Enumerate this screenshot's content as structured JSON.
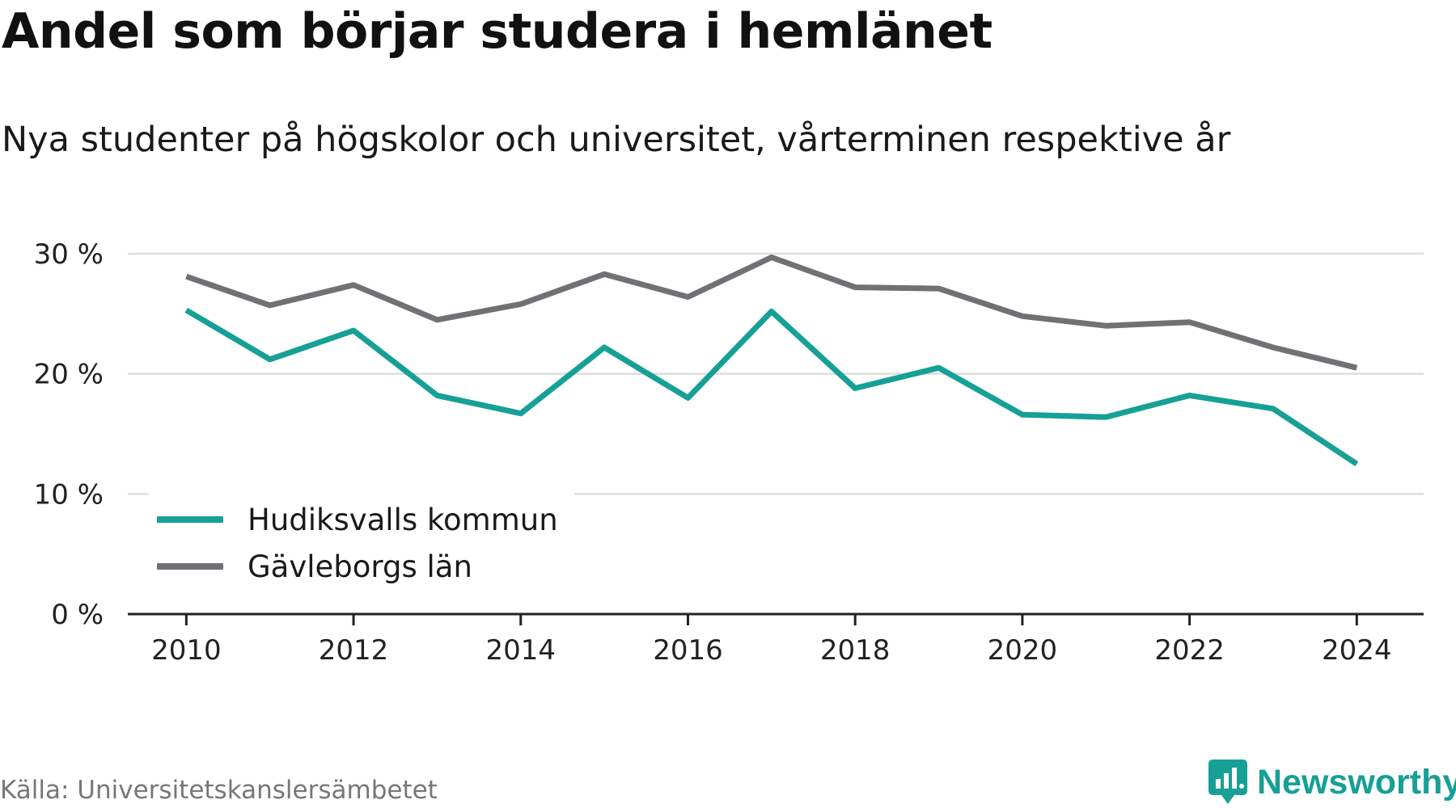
{
  "title": "Andel som börjar studera i hemlänet",
  "subtitle": "Nya studenter på högskolor och universitet, vårterminen respektive år",
  "source": "Källa: Universitetskanslersämbetet",
  "brand": {
    "name": "Newsworthy",
    "icon": "newsworthy-logo-icon",
    "color": "#16a096"
  },
  "chart_data": {
    "type": "line",
    "title": "Andel som börjar studera i hemlänet",
    "subtitle": "Nya studenter på högskolor och universitet, vårterminen respektive år",
    "xlabel": "",
    "ylabel": "",
    "x": [
      2010,
      2011,
      2012,
      2013,
      2014,
      2015,
      2016,
      2017,
      2018,
      2019,
      2020,
      2021,
      2022,
      2023,
      2024
    ],
    "x_ticks": [
      "2010",
      "2012",
      "2014",
      "2016",
      "2018",
      "2020",
      "2022",
      "2024"
    ],
    "y_ticks": [
      "0 %",
      "10 %",
      "20 %",
      "30 %"
    ],
    "ylim": [
      0,
      30
    ],
    "xlim": [
      2009.3,
      2024.8
    ],
    "grid": "horizontal",
    "legend_position": "bottom-left",
    "series": [
      {
        "name": "Hudiksvalls kommun",
        "color": "#16a096",
        "values": [
          25.3,
          21.2,
          23.6,
          18.2,
          16.7,
          22.2,
          18.0,
          25.2,
          18.8,
          20.5,
          16.6,
          16.4,
          18.2,
          17.1,
          12.5
        ]
      },
      {
        "name": "Gävleborgs län",
        "color": "#707075",
        "values": [
          28.1,
          25.7,
          27.4,
          24.5,
          25.8,
          28.3,
          26.4,
          29.7,
          27.2,
          27.1,
          24.8,
          24.0,
          24.3,
          22.2,
          20.5
        ]
      }
    ]
  }
}
